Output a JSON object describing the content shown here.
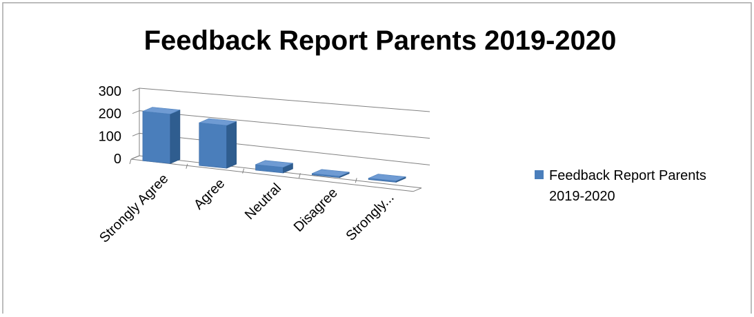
{
  "chart_data": {
    "type": "bar",
    "title": "Feedback Report Parents 2019-2020",
    "categories": [
      "Strongly Agree",
      "Agree",
      "Neutral",
      "Disagree",
      "Strongly..."
    ],
    "series": [
      {
        "name": "Feedback Report Parents 2019-2020",
        "values": [
          220,
          190,
          25,
          3,
          5
        ]
      }
    ],
    "ylim": [
      0,
      300
    ],
    "yticks": [
      "0",
      "100",
      "200",
      "300"
    ],
    "grid": true,
    "legend_position": "right",
    "view": "3d",
    "legend_lines": [
      "Feedback Report Parents",
      "2019-2020"
    ],
    "colors": {
      "bar_front": "#4a7ebb",
      "bar_side": "#2f5d8f",
      "bar_top": "#6f9bd3",
      "legend_swatch": "#4a7ebb",
      "frame": "#a6a6a6",
      "grid": "#808080"
    }
  }
}
